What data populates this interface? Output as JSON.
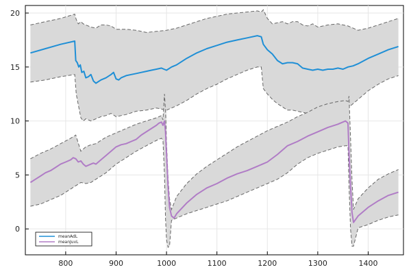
{
  "chart_data": {
    "type": "line",
    "title": "",
    "xlabel": "",
    "ylabel": "",
    "xlim": [
      720,
      1470
    ],
    "ylim": [
      -2.4,
      20.7
    ],
    "xticks": [
      800,
      900,
      1000,
      1100,
      1200,
      1300,
      1400
    ],
    "yticks": [
      0,
      5,
      10,
      15,
      20
    ],
    "grid": true,
    "legend_position": "bottom-left",
    "series": [
      {
        "name": "meanAdL",
        "color": "#1f8fd6",
        "x": [
          730,
          760,
          790,
          818,
          820,
          823,
          826,
          829,
          832,
          836,
          840,
          845,
          850,
          855,
          860,
          870,
          880,
          890,
          895,
          900,
          905,
          910,
          920,
          930,
          940,
          950,
          960,
          970,
          980,
          990,
          995,
          1000,
          1010,
          1020,
          1040,
          1060,
          1080,
          1100,
          1120,
          1140,
          1160,
          1180,
          1188,
          1192,
          1200,
          1210,
          1220,
          1230,
          1240,
          1250,
          1260,
          1270,
          1280,
          1290,
          1300,
          1310,
          1320,
          1330,
          1340,
          1350,
          1360,
          1370,
          1380,
          1400,
          1420,
          1440,
          1460
        ],
        "y": [
          16.3,
          16.7,
          17.1,
          17.4,
          15.6,
          15.4,
          15.0,
          15.2,
          14.5,
          14.6,
          14.0,
          14.1,
          14.3,
          13.7,
          13.5,
          13.8,
          14.0,
          14.3,
          14.5,
          13.9,
          13.8,
          14.0,
          14.2,
          14.3,
          14.4,
          14.5,
          14.6,
          14.7,
          14.8,
          14.9,
          14.8,
          14.7,
          15.0,
          15.2,
          15.8,
          16.3,
          16.7,
          17.0,
          17.3,
          17.5,
          17.7,
          17.9,
          17.8,
          17.1,
          16.6,
          16.2,
          15.6,
          15.3,
          15.4,
          15.4,
          15.3,
          14.9,
          14.8,
          14.7,
          14.8,
          14.7,
          14.8,
          14.8,
          14.9,
          14.8,
          15.0,
          15.1,
          15.3,
          15.8,
          16.2,
          16.6,
          16.9
        ]
      },
      {
        "name": "meanJuvL",
        "color": "#b07cc6",
        "x": [
          730,
          740,
          750,
          760,
          770,
          780,
          790,
          800,
          810,
          815,
          820,
          825,
          830,
          835,
          840,
          845,
          850,
          855,
          860,
          870,
          880,
          890,
          900,
          910,
          920,
          930,
          940,
          950,
          960,
          970,
          980,
          985,
          990,
          993,
          996,
          998,
          1000,
          1003,
          1006,
          1010,
          1015,
          1020,
          1040,
          1060,
          1080,
          1100,
          1120,
          1140,
          1160,
          1180,
          1200,
          1220,
          1240,
          1260,
          1280,
          1300,
          1320,
          1340,
          1355,
          1360,
          1362,
          1365,
          1368,
          1371,
          1380,
          1400,
          1420,
          1440,
          1460
        ],
        "y": [
          4.3,
          4.6,
          4.9,
          5.2,
          5.4,
          5.7,
          6.0,
          6.2,
          6.4,
          6.6,
          6.5,
          6.2,
          6.3,
          6.0,
          5.8,
          5.9,
          6.0,
          6.1,
          6.0,
          6.4,
          6.8,
          7.2,
          7.6,
          7.8,
          7.9,
          8.1,
          8.3,
          8.7,
          9.0,
          9.3,
          9.6,
          9.8,
          9.9,
          9.6,
          10.0,
          9.0,
          7.0,
          4.0,
          2.0,
          1.2,
          1.0,
          1.4,
          2.4,
          3.2,
          3.8,
          4.2,
          4.7,
          5.1,
          5.4,
          5.8,
          6.2,
          6.9,
          7.7,
          8.1,
          8.6,
          9.0,
          9.4,
          9.7,
          10.0,
          9.8,
          7.0,
          4.0,
          1.5,
          0.6,
          1.2,
          2.0,
          2.6,
          3.1,
          3.4
        ]
      }
    ],
    "bands": [
      {
        "x": [
          730,
          760,
          790,
          818,
          821,
          825,
          830,
          835,
          840,
          850,
          860,
          870,
          880,
          890,
          900,
          920,
          940,
          960,
          980,
          1000,
          1020,
          1040,
          1060,
          1080,
          1100,
          1120,
          1140,
          1160,
          1180,
          1188,
          1192,
          1200,
          1210,
          1220,
          1230,
          1240,
          1250,
          1260,
          1270,
          1280,
          1290,
          1300,
          1320,
          1340,
          1360,
          1380,
          1400,
          1420,
          1440,
          1460
        ],
        "upper": [
          18.9,
          19.2,
          19.5,
          19.9,
          19.4,
          19.0,
          19.2,
          19.0,
          18.9,
          18.7,
          18.6,
          18.9,
          18.9,
          18.8,
          18.5,
          18.5,
          18.4,
          18.2,
          18.3,
          18.4,
          18.6,
          18.9,
          19.2,
          19.5,
          19.7,
          19.9,
          20.0,
          20.1,
          20.2,
          20.1,
          20.3,
          19.5,
          19.0,
          19.1,
          19.2,
          19.0,
          19.2,
          19.2,
          18.9,
          18.8,
          19.0,
          18.7,
          18.9,
          19.0,
          18.8,
          18.4,
          18.6,
          18.9,
          19.2,
          19.5
        ],
        "lower": [
          13.6,
          13.8,
          14.1,
          14.3,
          12.5,
          11.5,
          10.3,
          10.0,
          10.2,
          10.0,
          10.2,
          10.4,
          10.5,
          10.7,
          10.4,
          10.6,
          10.9,
          11.0,
          11.2,
          11.0,
          11.4,
          11.9,
          12.5,
          13.0,
          13.4,
          13.9,
          14.3,
          14.7,
          15.0,
          15.0,
          13.0,
          12.5,
          12.0,
          11.6,
          11.3,
          11.0,
          11.0,
          10.9,
          10.8,
          10.7,
          10.6,
          10.7,
          10.8,
          10.9,
          11.2,
          12.0,
          12.8,
          13.4,
          13.9,
          14.2
        ]
      },
      {
        "x": [
          730,
          750,
          770,
          790,
          810,
          820,
          830,
          840,
          850,
          860,
          880,
          900,
          920,
          940,
          960,
          980,
          990,
          993,
          996,
          998,
          1000,
          1003,
          1006,
          1010,
          1020,
          1040,
          1060,
          1080,
          1100,
          1120,
          1140,
          1160,
          1180,
          1200,
          1220,
          1240,
          1260,
          1280,
          1300,
          1320,
          1340,
          1355,
          1360,
          1362,
          1365,
          1368,
          1371,
          1380,
          1400,
          1420,
          1440,
          1460
        ],
        "upper": [
          6.5,
          7.0,
          7.4,
          7.9,
          8.4,
          8.7,
          7.2,
          7.6,
          7.8,
          7.9,
          8.5,
          8.9,
          9.3,
          9.7,
          10.0,
          10.3,
          10.5,
          10.1,
          12.5,
          11.0,
          8.0,
          4.8,
          2.8,
          1.8,
          3.0,
          4.2,
          5.1,
          5.8,
          6.4,
          7.0,
          7.6,
          8.1,
          8.6,
          9.1,
          9.5,
          9.9,
          10.4,
          10.8,
          11.3,
          11.6,
          11.8,
          11.9,
          11.8,
          12.3,
          8.5,
          4.5,
          1.8,
          2.8,
          3.8,
          4.6,
          5.1,
          5.5
        ],
        "lower": [
          2.1,
          2.3,
          2.7,
          3.1,
          3.7,
          4.0,
          4.3,
          4.2,
          4.3,
          4.6,
          5.2,
          6.0,
          6.6,
          7.2,
          7.7,
          8.2,
          8.4,
          8.2,
          5.0,
          1.0,
          -1.0,
          -1.7,
          -1.6,
          0.8,
          1.0,
          1.4,
          1.7,
          2.0,
          2.3,
          2.6,
          3.0,
          3.4,
          3.8,
          4.2,
          4.6,
          5.2,
          6.0,
          6.6,
          7.0,
          7.3,
          7.6,
          7.7,
          7.7,
          4.0,
          0.0,
          -1.6,
          -1.6,
          0.1,
          0.4,
          0.8,
          1.1,
          1.3
        ]
      }
    ]
  }
}
